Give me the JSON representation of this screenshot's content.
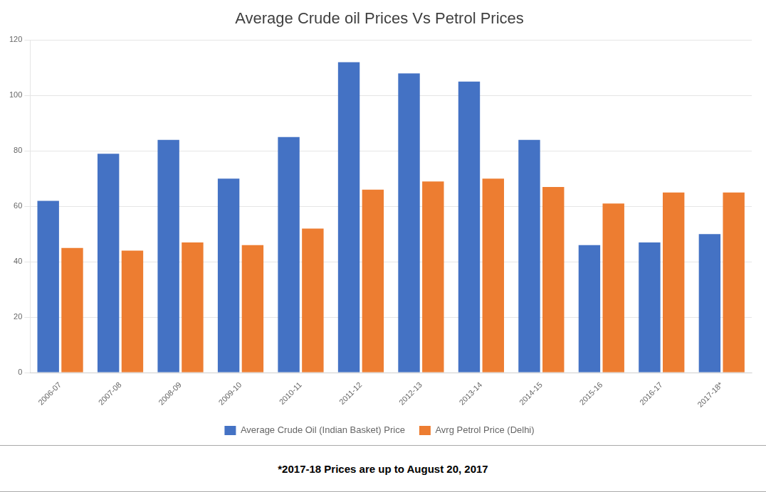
{
  "chart_data": {
    "type": "bar",
    "title": "Average Crude oil Prices Vs Petrol Prices",
    "categories": [
      "2006-07",
      "2007-08",
      "2008-09",
      "2009-10",
      "2010-11",
      "2011-12",
      "2012-13",
      "2013-14",
      "2014-15",
      "2015-16",
      "2016-17",
      "2017-18*"
    ],
    "series": [
      {
        "name": "Average Crude Oil (Indian Basket) Price",
        "color": "#4472C4",
        "values": [
          62,
          79,
          84,
          70,
          85,
          112,
          108,
          105,
          84,
          46,
          47,
          50
        ]
      },
      {
        "name": "Avrg Petrol Price (Delhi)",
        "color": "#ED7D31",
        "values": [
          45,
          44,
          47,
          46,
          52,
          66,
          69,
          70,
          67,
          61,
          65,
          65
        ]
      }
    ],
    "ylim": [
      0,
      120
    ],
    "yticks": [
      0,
      20,
      40,
      60,
      80,
      100,
      120
    ],
    "grid": true,
    "legend": "bottom",
    "annotations": [
      "*2017-18 Prices are up to August 20, 2017"
    ]
  }
}
